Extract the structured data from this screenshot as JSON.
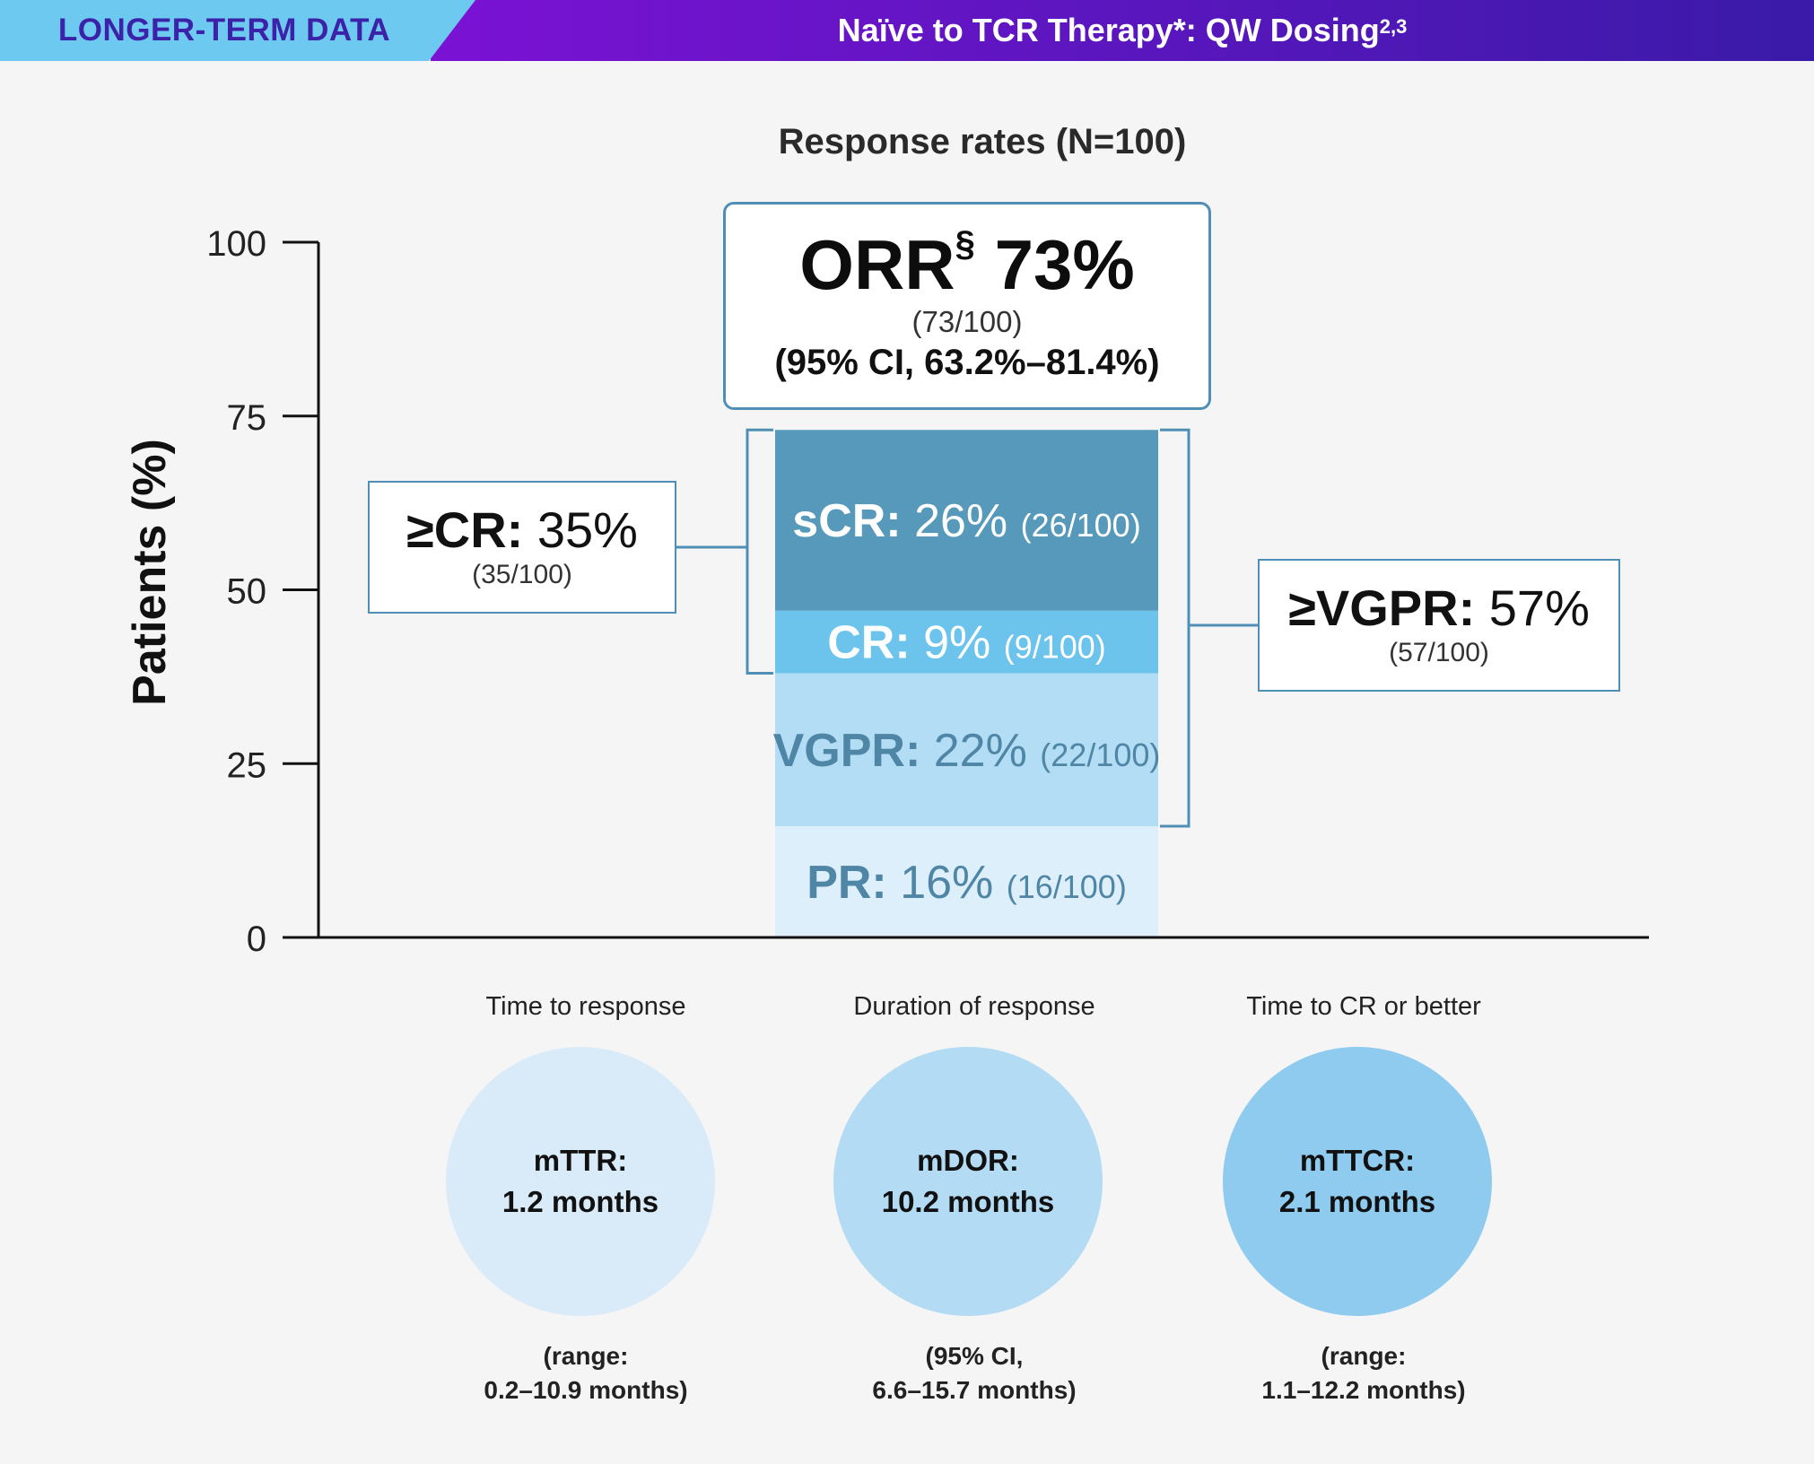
{
  "header": {
    "left_label": "LONGER-TERM DATA",
    "right_title": "Naïve to TCR Therapy*: QW Dosing",
    "right_sup": "2,3",
    "colors": {
      "left_bg": "#6ec9f0",
      "right_bg_start": "#7b12d4",
      "right_bg_end": "#3a1aa8"
    }
  },
  "chart_data": {
    "type": "bar",
    "title": "Response rates (N=100)",
    "ylabel": "Patients (%)",
    "xlabel": "",
    "ylim": [
      0,
      100
    ],
    "yticks": [
      0,
      25,
      50,
      75,
      100
    ],
    "stacked": true,
    "segments": [
      {
        "name": "PR",
        "value": 16,
        "label": "PR:",
        "pct": "16%",
        "frac": "(16/100)",
        "color": "#ddeffb",
        "text_color": "#4f86a6"
      },
      {
        "name": "VGPR",
        "value": 22,
        "label": "VGPR:",
        "pct": "22%",
        "frac": "(22/100)",
        "color": "#b2ddf4",
        "text_color": "#4f86a6"
      },
      {
        "name": "CR",
        "value": 9,
        "label": "CR:",
        "pct": "9%",
        "frac": "(9/100)",
        "color": "#6cc3ec",
        "text_color": "#ffffff"
      },
      {
        "name": "sCR",
        "value": 26,
        "label": "sCR:",
        "pct": "26%",
        "frac": "(26/100)",
        "color": "#5799bb",
        "text_color": "#ffffff"
      }
    ],
    "callouts": {
      "orr": {
        "label": "ORR",
        "sup": "§",
        "value": "73%",
        "frac": "(73/100)",
        "ci": "(95% CI, 63.2%–81.4%)"
      },
      "cr_or_better": {
        "label": "≥CR:",
        "value": "35%",
        "frac": "(35/100)"
      },
      "vgpr_or_better": {
        "label": "≥VGPR:",
        "value": "57%",
        "frac": "(57/100)"
      }
    }
  },
  "metrics": [
    {
      "title": "Time to response",
      "name": "mTTR:",
      "value": "1.2 months",
      "foot1": "(range:",
      "foot2": "0.2–10.9 months)",
      "color": "#d9ebf8"
    },
    {
      "title": "Duration of response",
      "name": "mDOR:",
      "value": "10.2 months",
      "foot1": "(95% CI,",
      "foot2": "6.6–15.7 months)",
      "color": "#b3dbf3"
    },
    {
      "title": "Time to CR or better",
      "name": "mTTCR:",
      "value": "2.1 months",
      "foot1": "(range:",
      "foot2": "1.1–12.2 months)",
      "color": "#8ecbef"
    }
  ]
}
